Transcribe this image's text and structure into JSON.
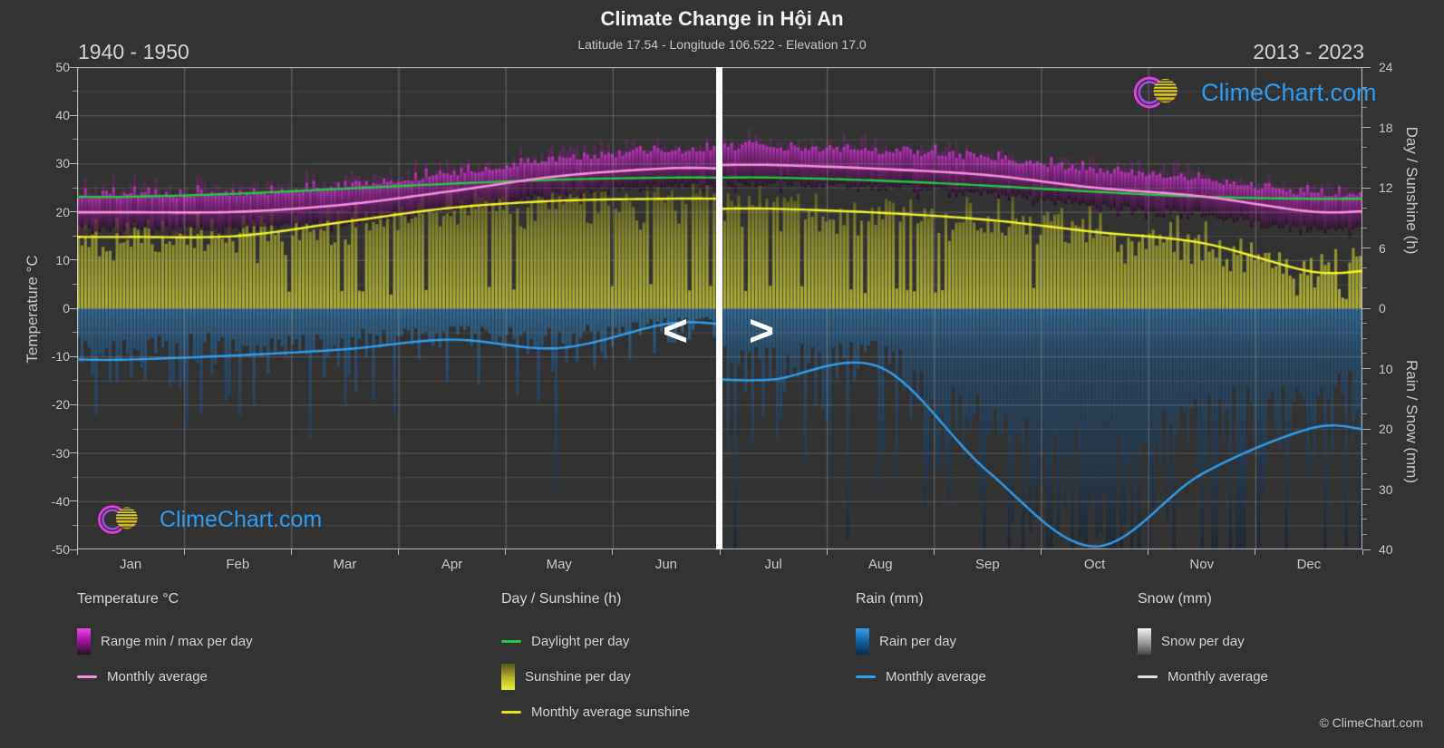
{
  "header": {
    "title": "Climate Change in Hội An",
    "subtitle": "Latitude 17.54 - Longitude 106.522 - Elevation 17.0",
    "period_left": "1940 - 1950",
    "period_right": "2013 - 2023"
  },
  "watermark": {
    "text": "ClimeChart.com"
  },
  "footer": {
    "copyright": "© ClimeChart.com"
  },
  "nav": {
    "prev": "<",
    "next": ">"
  },
  "colors": {
    "background": "#333333",
    "temp_avg_line": "#f78fdc",
    "daylight_line": "#1ecb3c",
    "sunshine_line": "#f4f42a",
    "rain_line": "#2f9ff2",
    "snow_line": "#e0e0e0",
    "temp_bar_bright": "#e133e1",
    "sunshine_bar_bright": "#cdcd37",
    "rain_bar_bright": "#2d8cdc",
    "logo_text": "#2b9cf2"
  },
  "axes": {
    "temperature": {
      "title": "Temperature °C",
      "ticks": [
        50,
        40,
        30,
        20,
        10,
        0,
        -10,
        -20,
        -30,
        -40,
        -50
      ],
      "range": [
        -50,
        50
      ]
    },
    "day_sunshine": {
      "title": "Day / Sunshine (h)",
      "ticks": [
        24,
        18,
        12,
        6,
        0
      ],
      "range": [
        0,
        24
      ]
    },
    "rain_snow": {
      "title": "Rain / Snow (mm)",
      "ticks": [
        10,
        20,
        30,
        40
      ],
      "range": [
        0,
        40
      ],
      "direction": "down"
    },
    "months": [
      "Jan",
      "Feb",
      "Mar",
      "Apr",
      "May",
      "Jun",
      "Jul",
      "Aug",
      "Sep",
      "Oct",
      "Nov",
      "Dec"
    ]
  },
  "legend": {
    "groups": [
      {
        "title": "Temperature °C",
        "items": [
          {
            "type": "gradient",
            "swatch": "sw-magenta",
            "label": "Range min / max per day"
          },
          {
            "type": "line",
            "color": "#f78fdc",
            "label": "Monthly average"
          }
        ]
      },
      {
        "title": "Day / Sunshine (h)",
        "items": [
          {
            "type": "line",
            "color": "#1ecb3c",
            "label": "Daylight per day"
          },
          {
            "type": "gradient",
            "swatch": "sw-yellow",
            "label": "Sunshine per day"
          },
          {
            "type": "line",
            "color": "#e3e016",
            "label": "Monthly average sunshine"
          }
        ]
      },
      {
        "title": "Rain (mm)",
        "items": [
          {
            "type": "gradient",
            "swatch": "sw-blue",
            "label": "Rain per day"
          },
          {
            "type": "line",
            "color": "#2f9ff2",
            "label": "Monthly average"
          }
        ]
      },
      {
        "title": "Snow (mm)",
        "items": [
          {
            "type": "gradient",
            "swatch": "sw-snow",
            "label": "Snow per day"
          },
          {
            "type": "line",
            "color": "#e0e0e0",
            "label": "Monthly average"
          }
        ]
      }
    ]
  },
  "chart_data": {
    "type": "line",
    "title": "Climate Change in Hội An",
    "description": "Split-year comparison chart: daily bars (temperature range, sunshine, rain) with smoothed monthly-average curves. Left half shows Jan-Jun of 1940-1950, right half Jul-Dec of 2013-2023, separated by a white divider.",
    "ylim_temperature_c": [
      -50,
      50
    ],
    "ylim_day_sunshine_h": [
      0,
      24
    ],
    "ylim_rain_snow_mm_down": [
      0,
      40
    ],
    "grid": true,
    "periods": [
      {
        "label": "1940 - 1950",
        "months": [
          "Jan",
          "Feb",
          "Mar",
          "Apr",
          "May",
          "Jun"
        ],
        "temp_avg_c": [
          19.9,
          20.0,
          21.5,
          24.3,
          27.4,
          29.0
        ],
        "daylight_h": [
          11.1,
          11.4,
          11.9,
          12.4,
          12.8,
          13.0
        ],
        "sunshine_avg_h": [
          7.1,
          7.2,
          8.6,
          10.0,
          10.7,
          10.9
        ],
        "rain_avg_mm": [
          8.5,
          7.8,
          6.8,
          5.2,
          6.6,
          2.6
        ],
        "snow_avg_mm": [
          0,
          0,
          0,
          0,
          0,
          0
        ]
      },
      {
        "label": "2013 - 2023",
        "months": [
          "Jul",
          "Aug",
          "Sep",
          "Oct",
          "Nov",
          "Dec"
        ],
        "temp_avg_c": [
          29.7,
          28.9,
          27.6,
          25.0,
          23.2,
          20.1
        ],
        "daylight_h": [
          13.0,
          12.7,
          12.2,
          11.6,
          11.1,
          10.9
        ],
        "sunshine_avg_h": [
          9.9,
          9.5,
          8.8,
          7.6,
          6.5,
          3.7
        ],
        "rain_avg_mm": [
          11.8,
          9.8,
          27.0,
          39.5,
          27.5,
          20.0
        ],
        "snow_avg_mm": [
          0,
          0,
          0,
          0,
          0,
          0
        ]
      }
    ],
    "daily_bars": {
      "temperature_range_spread_c": 3.2,
      "sunshine_variability_h": 2.4,
      "rain_tail": "exponential, clipped at 40 mm"
    }
  }
}
